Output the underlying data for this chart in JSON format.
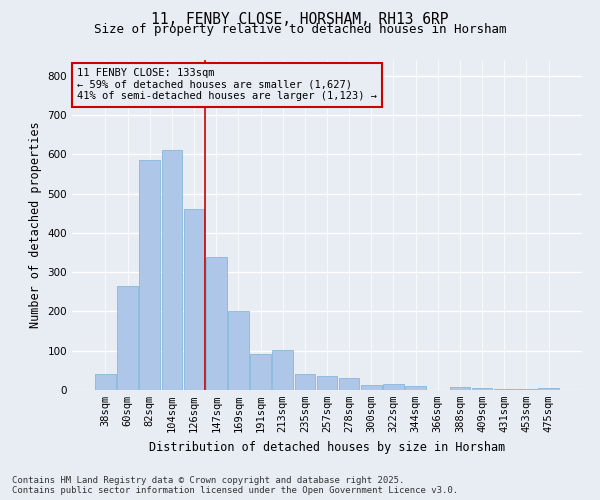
{
  "title": "11, FENBY CLOSE, HORSHAM, RH13 6RP",
  "subtitle": "Size of property relative to detached houses in Horsham",
  "xlabel": "Distribution of detached houses by size in Horsham",
  "ylabel": "Number of detached properties",
  "categories": [
    "38sqm",
    "60sqm",
    "82sqm",
    "104sqm",
    "126sqm",
    "147sqm",
    "169sqm",
    "191sqm",
    "213sqm",
    "235sqm",
    "257sqm",
    "278sqm",
    "300sqm",
    "322sqm",
    "344sqm",
    "366sqm",
    "388sqm",
    "409sqm",
    "431sqm",
    "453sqm",
    "475sqm"
  ],
  "values": [
    40,
    265,
    585,
    610,
    460,
    338,
    202,
    92,
    103,
    42,
    35,
    30,
    12,
    15,
    10,
    0,
    8,
    5,
    2,
    2,
    5
  ],
  "bar_color": "#aec6e8",
  "bar_edge_color": "#7ab0d8",
  "background_color": "#e8edf4",
  "grid_color": "#ffffff",
  "annotation_box_color": "#cc0000",
  "annotation_line1": "11 FENBY CLOSE: 133sqm",
  "annotation_line2": "← 59% of detached houses are smaller (1,627)",
  "annotation_line3": "41% of semi-detached houses are larger (1,123) →",
  "vline_x_index": 4.5,
  "ylim": [
    0,
    840
  ],
  "yticks": [
    0,
    100,
    200,
    300,
    400,
    500,
    600,
    700,
    800
  ],
  "footer_line1": "Contains HM Land Registry data © Crown copyright and database right 2025.",
  "footer_line2": "Contains public sector information licensed under the Open Government Licence v3.0.",
  "title_fontsize": 10.5,
  "subtitle_fontsize": 9,
  "axis_label_fontsize": 8.5,
  "tick_fontsize": 7.5,
  "annotation_fontsize": 7.5,
  "footer_fontsize": 6.5
}
